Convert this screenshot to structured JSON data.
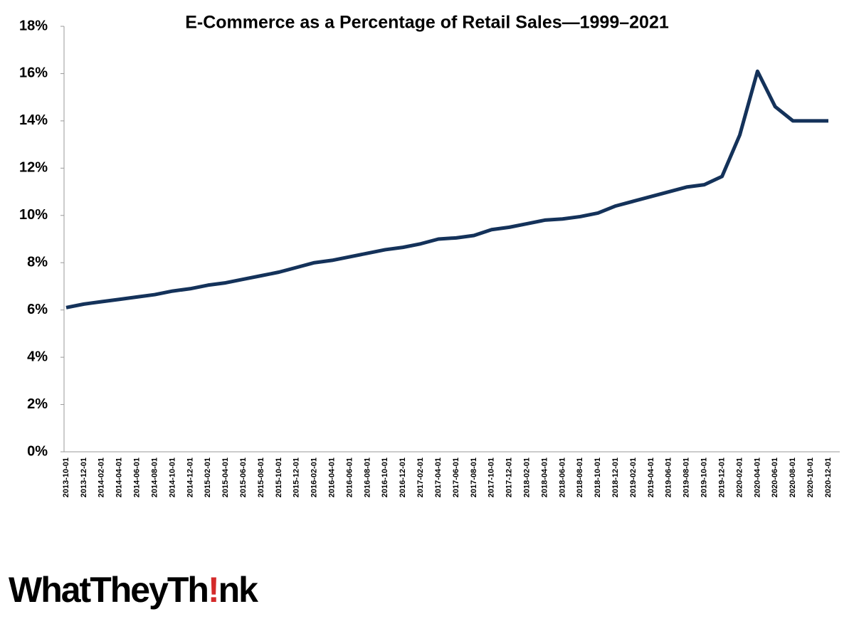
{
  "chart_data": {
    "type": "line",
    "title": "E-Commerce as a Percentage of Retail Sales—1999–2021",
    "categories": [
      "2013-10-01",
      "2013-12-01",
      "2014-02-01",
      "2014-04-01",
      "2014-06-01",
      "2014-08-01",
      "2014-10-01",
      "2014-12-01",
      "2015-02-01",
      "2015-04-01",
      "2015-06-01",
      "2015-08-01",
      "2015-10-01",
      "2015-12-01",
      "2016-02-01",
      "2016-04-01",
      "2016-06-01",
      "2016-08-01",
      "2016-10-01",
      "2016-12-01",
      "2017-02-01",
      "2017-04-01",
      "2017-06-01",
      "2017-08-01",
      "2017-10-01",
      "2017-12-01",
      "2018-02-01",
      "2018-04-01",
      "2018-06-01",
      "2018-08-01",
      "2018-10-01",
      "2018-12-01",
      "2019-02-01",
      "2019-04-01",
      "2019-06-01",
      "2019-08-01",
      "2019-10-01",
      "2019-12-01",
      "2020-02-01",
      "2020-04-01",
      "2020-06-01",
      "2020-08-01",
      "2020-10-01",
      "2020-12-01"
    ],
    "series": [
      {
        "color": "#14325a",
        "values": [
          6.1,
          6.25,
          6.35,
          6.45,
          6.55,
          6.65,
          6.8,
          6.9,
          7.05,
          7.15,
          7.3,
          7.45,
          7.6,
          7.8,
          8.0,
          8.1,
          8.25,
          8.4,
          8.55,
          8.65,
          8.8,
          9.0,
          9.05,
          9.15,
          9.4,
          9.5,
          9.65,
          9.8,
          9.85,
          9.95,
          10.1,
          10.4,
          10.6,
          10.8,
          11.0,
          11.2,
          11.3,
          11.65,
          13.4,
          16.1,
          14.6,
          14.0,
          14.0,
          14.0
        ]
      }
    ],
    "ylim": [
      0,
      18
    ],
    "yticks": [
      {
        "value": 0,
        "label": "0%"
      },
      {
        "value": 2,
        "label": "2%"
      },
      {
        "value": 4,
        "label": "4%"
      },
      {
        "value": 6,
        "label": "6%"
      },
      {
        "value": 8,
        "label": "8%"
      },
      {
        "value": 10,
        "label": "10%"
      },
      {
        "value": 12,
        "label": "12%"
      },
      {
        "value": 14,
        "label": "14%"
      },
      {
        "value": 16,
        "label": "16%"
      },
      {
        "value": 18,
        "label": "18%"
      }
    ],
    "grid": false
  },
  "logo": [
    "WhatTheyTh",
    "!",
    "nk"
  ]
}
